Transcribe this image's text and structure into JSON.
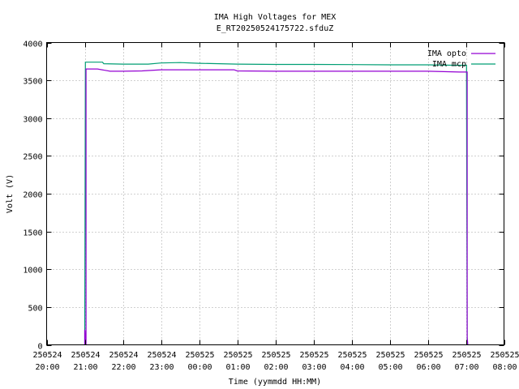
{
  "chart_data": {
    "type": "line",
    "title": "IMA High Voltages for MEX",
    "subtitle": "E_RT20250524175722.sfduZ",
    "xlabel": "Time (yymmdd HH:MM)",
    "ylabel": "Volt (V)",
    "ylim": [
      0,
      4000
    ],
    "yticks": [
      0,
      500,
      1000,
      1500,
      2000,
      2500,
      3000,
      3500,
      4000
    ],
    "xlim": [
      "2025-05-24 20:00",
      "2025-05-25 08:00"
    ],
    "xticks": [
      {
        "t": "2025-05-24 20:00",
        "date": "250524",
        "time": "20:00"
      },
      {
        "t": "2025-05-24 21:00",
        "date": "250524",
        "time": "21:00"
      },
      {
        "t": "2025-05-24 22:00",
        "date": "250524",
        "time": "22:00"
      },
      {
        "t": "2025-05-24 23:00",
        "date": "250524",
        "time": "23:00"
      },
      {
        "t": "2025-05-25 00:00",
        "date": "250525",
        "time": "00:00"
      },
      {
        "t": "2025-05-25 01:00",
        "date": "250525",
        "time": "01:00"
      },
      {
        "t": "2025-05-25 02:00",
        "date": "250525",
        "time": "02:00"
      },
      {
        "t": "2025-05-25 03:00",
        "date": "250525",
        "time": "03:00"
      },
      {
        "t": "2025-05-25 04:00",
        "date": "250525",
        "time": "04:00"
      },
      {
        "t": "2025-05-25 05:00",
        "date": "250525",
        "time": "05:00"
      },
      {
        "t": "2025-05-25 06:00",
        "date": "250525",
        "time": "06:00"
      },
      {
        "t": "2025-05-25 07:00",
        "date": "250525",
        "time": "07:00"
      },
      {
        "t": "2025-05-25 08:00",
        "date": "250525",
        "time": "08:00"
      }
    ],
    "grid": true,
    "legend_position": "top-right",
    "series": [
      {
        "name": "IMA opto",
        "color": "#9400d3",
        "points": [
          [
            "2025-05-24 21:00",
            0
          ],
          [
            "2025-05-24 21:00",
            200
          ],
          [
            "2025-05-24 21:02",
            0
          ],
          [
            "2025-05-24 21:02",
            3650
          ],
          [
            "2025-05-24 21:20",
            3650
          ],
          [
            "2025-05-24 21:40",
            3620
          ],
          [
            "2025-05-24 22:00",
            3620
          ],
          [
            "2025-05-24 22:30",
            3625
          ],
          [
            "2025-05-24 23:00",
            3640
          ],
          [
            "2025-05-25 00:00",
            3640
          ],
          [
            "2025-05-25 00:55",
            3640
          ],
          [
            "2025-05-25 01:00",
            3625
          ],
          [
            "2025-05-25 02:00",
            3620
          ],
          [
            "2025-05-25 03:00",
            3620
          ],
          [
            "2025-05-25 04:00",
            3620
          ],
          [
            "2025-05-25 05:00",
            3620
          ],
          [
            "2025-05-25 06:00",
            3620
          ],
          [
            "2025-05-25 06:50",
            3610
          ],
          [
            "2025-05-25 07:02",
            3610
          ],
          [
            "2025-05-25 07:02",
            100
          ],
          [
            "2025-05-25 07:03",
            0
          ]
        ]
      },
      {
        "name": "IMA mcp",
        "color": "#009e73",
        "points": [
          [
            "2025-05-24 21:00",
            0
          ],
          [
            "2025-05-24 21:01",
            3740
          ],
          [
            "2025-05-24 21:28",
            3740
          ],
          [
            "2025-05-24 21:30",
            3720
          ],
          [
            "2025-05-24 22:00",
            3715
          ],
          [
            "2025-05-24 22:40",
            3715
          ],
          [
            "2025-05-24 23:00",
            3730
          ],
          [
            "2025-05-24 23:30",
            3735
          ],
          [
            "2025-05-25 00:00",
            3725
          ],
          [
            "2025-05-25 01:00",
            3715
          ],
          [
            "2025-05-25 02:00",
            3710
          ],
          [
            "2025-05-25 03:00",
            3710
          ],
          [
            "2025-05-25 04:00",
            3708
          ],
          [
            "2025-05-25 05:00",
            3705
          ],
          [
            "2025-05-25 06:00",
            3705
          ],
          [
            "2025-05-25 06:40",
            3700
          ],
          [
            "2025-05-25 07:01",
            3700
          ],
          [
            "2025-05-25 07:01",
            3450
          ],
          [
            "2025-05-25 07:02",
            0
          ]
        ]
      }
    ]
  }
}
